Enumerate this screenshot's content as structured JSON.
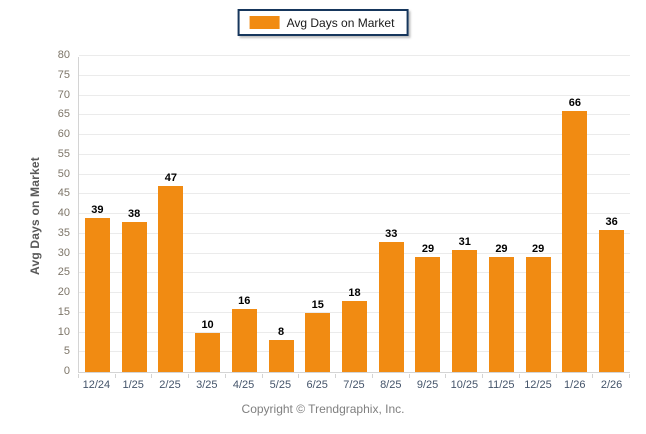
{
  "chart_data": {
    "type": "bar",
    "categories": [
      "12/24",
      "1/25",
      "2/25",
      "3/25",
      "4/25",
      "5/25",
      "6/25",
      "7/25",
      "8/25",
      "9/25",
      "10/25",
      "11/25",
      "12/25",
      "1/26",
      "2/26"
    ],
    "values": [
      39,
      38,
      47,
      10,
      16,
      8,
      15,
      18,
      33,
      29,
      31,
      29,
      29,
      66,
      36
    ],
    "title": "",
    "xlabel": "",
    "ylabel": "Avg Days on Market",
    "ylim": [
      0,
      80
    ],
    "ytick_step": 5,
    "grid": true,
    "legend_label": "Avg Days on Market",
    "legend_position": "top-center",
    "bar_color": "#F18B12"
  },
  "colors": {
    "bar": "#F18B12",
    "legend_border": "#16365C",
    "gridline": "#EBEBEB",
    "y_tick_text": "#7D7568",
    "x_tick_text": "#44546A",
    "value_label": "#000000",
    "y_axis_title": "#595959",
    "footer_text": "#808080"
  },
  "footer": {
    "copyright": "Copyright © Trendgraphix, Inc."
  }
}
